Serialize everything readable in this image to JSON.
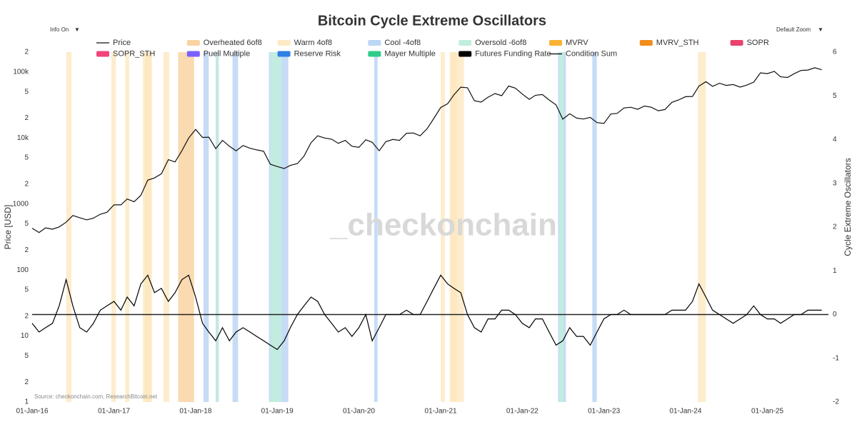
{
  "chart_data": {
    "type": "line",
    "title": "Bitcoin Cycle Extreme Oscillators",
    "controls": [
      "Info On",
      "Default Zoom"
    ],
    "watermark": "_checkonchain",
    "source": "Source: checkonchain.com, ResearchBitcoin.net",
    "ylabel": "Price [USD]",
    "y2label": "Cycle Extreme Oscillators",
    "log_y": true,
    "xlim": [
      "2016-01-01",
      "2025-10-01"
    ],
    "xticks": [
      {
        "value": "2016-01-01",
        "label": "01-Jan-16"
      },
      {
        "value": "2017-01-01",
        "label": "01-Jan-17"
      },
      {
        "value": "2018-01-01",
        "label": "01-Jan-18"
      },
      {
        "value": "2019-01-01",
        "label": "01-Jan-19"
      },
      {
        "value": "2020-01-01",
        "label": "01-Jan-20"
      },
      {
        "value": "2021-01-01",
        "label": "01-Jan-21"
      },
      {
        "value": "2022-01-01",
        "label": "01-Jan-22"
      },
      {
        "value": "2023-01-01",
        "label": "01-Jan-23"
      },
      {
        "value": "2024-01-01",
        "label": "01-Jan-24"
      },
      {
        "value": "2025-01-01",
        "label": "01-Jan-25"
      }
    ],
    "ylim": [
      1,
      200000
    ],
    "yticks": [
      1,
      {
        "value": 2,
        "label": "2"
      },
      {
        "value": 5,
        "label": "5"
      },
      10,
      {
        "value": 20,
        "label": "2"
      },
      {
        "value": 50,
        "label": "5"
      },
      100,
      {
        "value": 200,
        "label": "2"
      },
      {
        "value": 500,
        "label": "5"
      },
      1000,
      {
        "value": 2000,
        "label": "2"
      },
      {
        "value": 5000,
        "label": "5"
      },
      {
        "value": 10000,
        "label": "10k"
      },
      {
        "value": 20000,
        "label": "2"
      },
      {
        "value": 50000,
        "label": "5"
      },
      {
        "value": 100000,
        "label": "100k"
      },
      {
        "value": 200000,
        "label": "2"
      }
    ],
    "y2lim": [
      -2,
      6
    ],
    "y2ticks": [
      -2,
      -1,
      0,
      1,
      2,
      3,
      4,
      5,
      6
    ],
    "x": [
      "2016-01-01",
      "2016-02-01",
      "2016-03-01",
      "2016-04-01",
      "2016-05-01",
      "2016-06-01",
      "2016-07-01",
      "2016-08-01",
      "2016-09-01",
      "2016-10-01",
      "2016-11-01",
      "2016-12-01",
      "2017-01-01",
      "2017-02-01",
      "2017-03-01",
      "2017-04-01",
      "2017-05-01",
      "2017-06-01",
      "2017-07-01",
      "2017-08-01",
      "2017-09-01",
      "2017-10-01",
      "2017-11-01",
      "2017-12-01",
      "2018-01-01",
      "2018-02-01",
      "2018-03-01",
      "2018-04-01",
      "2018-05-01",
      "2018-06-01",
      "2018-07-01",
      "2018-08-01",
      "2018-09-01",
      "2018-10-01",
      "2018-11-01",
      "2018-12-01",
      "2019-01-01",
      "2019-02-01",
      "2019-03-01",
      "2019-04-01",
      "2019-05-01",
      "2019-06-01",
      "2019-07-01",
      "2019-08-01",
      "2019-09-01",
      "2019-10-01",
      "2019-11-01",
      "2019-12-01",
      "2020-01-01",
      "2020-02-01",
      "2020-03-01",
      "2020-04-01",
      "2020-05-01",
      "2020-06-01",
      "2020-07-01",
      "2020-08-01",
      "2020-09-01",
      "2020-10-01",
      "2020-11-01",
      "2020-12-01",
      "2021-01-01",
      "2021-02-01",
      "2021-03-01",
      "2021-04-01",
      "2021-05-01",
      "2021-06-01",
      "2021-07-01",
      "2021-08-01",
      "2021-09-01",
      "2021-10-01",
      "2021-11-01",
      "2021-12-01",
      "2022-01-01",
      "2022-02-01",
      "2022-03-01",
      "2022-04-01",
      "2022-05-01",
      "2022-06-01",
      "2022-07-01",
      "2022-08-01",
      "2022-09-01",
      "2022-10-01",
      "2022-11-01",
      "2022-12-01",
      "2023-01-01",
      "2023-02-01",
      "2023-03-01",
      "2023-04-01",
      "2023-05-01",
      "2023-06-01",
      "2023-07-01",
      "2023-08-01",
      "2023-09-01",
      "2023-10-01",
      "2023-11-01",
      "2023-12-01",
      "2024-01-01",
      "2024-02-01",
      "2024-03-01",
      "2024-04-01",
      "2024-05-01",
      "2024-06-01",
      "2024-07-01",
      "2024-08-01",
      "2024-09-01",
      "2024-10-01",
      "2024-11-01",
      "2024-12-01",
      "2025-01-01",
      "2025-02-01",
      "2025-03-01",
      "2025-04-01",
      "2025-05-01",
      "2025-06-01",
      "2025-07-01",
      "2025-08-01",
      "2025-09-01"
    ],
    "series": [
      {
        "name": "Price",
        "color": "#111111",
        "values": [
          430,
          370,
          435,
          415,
          450,
          530,
          670,
          620,
          575,
          610,
          700,
          750,
          970,
          970,
          1190,
          1080,
          1350,
          2300,
          2480,
          2870,
          4700,
          4340,
          6450,
          10000,
          13500,
          10200,
          10300,
          6900,
          9200,
          7500,
          6400,
          7700,
          7000,
          6600,
          6300,
          4000,
          3700,
          3450,
          3850,
          4100,
          5300,
          8500,
          10800,
          10000,
          9600,
          8300,
          9200,
          7500,
          7200,
          9400,
          8600,
          6400,
          8800,
          9500,
          9200,
          11800,
          11900,
          10800,
          13800,
          19700,
          29000,
          33000,
          45000,
          58900,
          57700,
          36700,
          35000,
          41500,
          47100,
          43800,
          61300,
          57000,
          46300,
          38500,
          44400,
          45500,
          37700,
          31700,
          19300,
          23300,
          20000,
          19400,
          20500,
          17100,
          16600,
          23100,
          23600,
          28500,
          29200,
          27200,
          30500,
          29200,
          25900,
          27000,
          34700,
          37700,
          42300,
          42600,
          61100,
          71300,
          60600,
          67500,
          62700,
          64600,
          59000,
          63300,
          70200,
          97000,
          94400,
          102400,
          84400,
          82500,
          94200,
          105700,
          107100,
          115800,
          108000
        ]
      },
      {
        "name": "Condition Sum",
        "color": "#000000",
        "axis": "y2",
        "values": [
          -0.2,
          -0.4,
          -0.3,
          -0.2,
          0.2,
          0.8,
          0.2,
          -0.3,
          -0.4,
          -0.2,
          0.1,
          0.2,
          0.3,
          0.1,
          0.4,
          0.2,
          0.7,
          0.9,
          0.5,
          0.6,
          0.3,
          0.5,
          0.8,
          0.9,
          0.4,
          -0.2,
          -0.4,
          -0.6,
          -0.3,
          -0.6,
          -0.4,
          -0.3,
          -0.4,
          -0.5,
          -0.6,
          -0.7,
          -0.8,
          -0.6,
          -0.3,
          0,
          0.2,
          0.4,
          0.3,
          0,
          -0.2,
          -0.4,
          -0.3,
          -0.5,
          -0.3,
          0,
          -0.6,
          -0.3,
          0,
          0,
          0,
          0.1,
          0,
          0,
          0.3,
          0.6,
          0.9,
          0.7,
          0.6,
          0.5,
          0,
          -0.3,
          -0.4,
          -0.1,
          -0.1,
          0.1,
          0.1,
          0,
          -0.2,
          -0.3,
          -0.1,
          -0.1,
          -0.4,
          -0.7,
          -0.6,
          -0.3,
          -0.5,
          -0.5,
          -0.7,
          -0.4,
          -0.1,
          0,
          0,
          0.1,
          0,
          0,
          0,
          0,
          0,
          0,
          0.1,
          0.1,
          0.1,
          0.3,
          0.7,
          0.4,
          0.1,
          0,
          -0.1,
          -0.2,
          -0.1,
          0,
          0.2,
          0,
          -0.1,
          -0.1,
          -0.2,
          -0.1,
          0,
          0,
          0.1,
          0.1,
          0.1
        ]
      }
    ],
    "regions": [
      {
        "name": "Overheated 6of8",
        "color": "#f9d3a2",
        "ranges": [
          [
            "2017-05-20",
            "2017-06-15"
          ],
          [
            "2017-10-15",
            "2017-12-25"
          ],
          [
            "2021-02-15",
            "2021-03-15"
          ]
        ]
      },
      {
        "name": "Warm 4of8",
        "color": "#fdeac4",
        "ranges": [
          [
            "2016-06-01",
            "2016-06-25"
          ],
          [
            "2016-12-20",
            "2017-01-10"
          ],
          [
            "2017-02-20",
            "2017-03-10"
          ],
          [
            "2017-05-10",
            "2017-06-20"
          ],
          [
            "2017-08-10",
            "2017-09-05"
          ],
          [
            "2021-01-01",
            "2021-01-20"
          ],
          [
            "2021-02-10",
            "2021-04-15"
          ],
          [
            "2024-02-25",
            "2024-04-01"
          ]
        ]
      },
      {
        "name": "Cool -4of8",
        "color": "#bcd6f5",
        "ranges": [
          [
            "2018-02-05",
            "2018-03-01"
          ],
          [
            "2018-04-01",
            "2018-04-15"
          ],
          [
            "2018-06-15",
            "2018-07-10"
          ],
          [
            "2018-11-25",
            "2019-02-20"
          ],
          [
            "2020-03-10",
            "2020-03-25"
          ],
          [
            "2022-06-10",
            "2022-07-15"
          ],
          [
            "2022-11-10",
            "2022-11-30"
          ]
        ]
      },
      {
        "name": "Oversold -6of8",
        "color": "#c2eedc",
        "ranges": [
          [
            "2018-04-05",
            "2018-04-15"
          ],
          [
            "2018-12-01",
            "2019-01-20"
          ],
          [
            "2022-06-15",
            "2022-07-05"
          ]
        ]
      }
    ],
    "oscillators": [
      {
        "name": "MVRV",
        "color": "#f9b233"
      },
      {
        "name": "MVRV_STH",
        "color": "#f28c1c"
      },
      {
        "name": "SOPR",
        "color": "#e8436e"
      },
      {
        "name": "SOPR_STH",
        "color": "#f2447a"
      },
      {
        "name": "Puell Multiple",
        "color": "#7b61ff"
      },
      {
        "name": "Reserve Risk",
        "color": "#2f7fe6"
      },
      {
        "name": "Mayer Multiple",
        "color": "#2ecc8a"
      },
      {
        "name": "Futures Funding Rate",
        "color": "#000000"
      }
    ]
  }
}
